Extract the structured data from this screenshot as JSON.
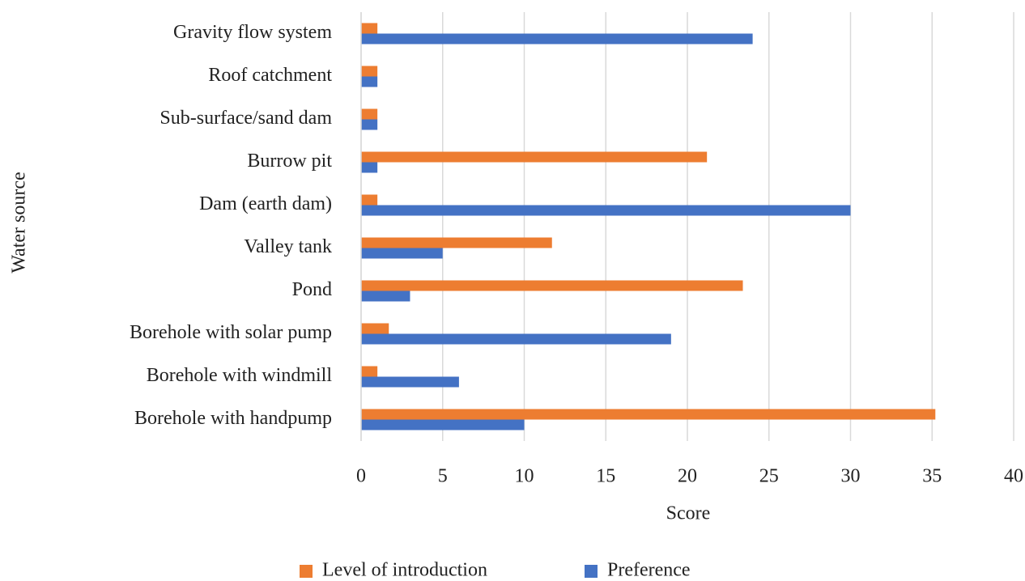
{
  "chart_data": {
    "type": "barh",
    "xlabel": "Score",
    "ylabel": "Water source",
    "categories": [
      "Gravity flow system",
      "Roof catchment",
      "Sub-surface/sand dam",
      "Burrow pit",
      "Dam (earth dam)",
      "Valley tank",
      "Pond",
      "Borehole with solar pump",
      "Borehole with windmill",
      "Borehole with handpump"
    ],
    "series": [
      {
        "name": "Level of introduction",
        "color": "#ed7d31",
        "values": [
          1,
          1,
          1,
          21.2,
          1,
          11.7,
          23.4,
          1.7,
          1,
          35.2
        ]
      },
      {
        "name": "Preference",
        "color": "#4472c4",
        "values": [
          24,
          1,
          1,
          1,
          30,
          5,
          3,
          19,
          6,
          10
        ]
      }
    ],
    "xlim": [
      0,
      40
    ],
    "xticks": [
      0,
      5,
      10,
      15,
      20,
      25,
      30,
      35,
      40
    ],
    "grid": true,
    "legend": "bottom"
  }
}
